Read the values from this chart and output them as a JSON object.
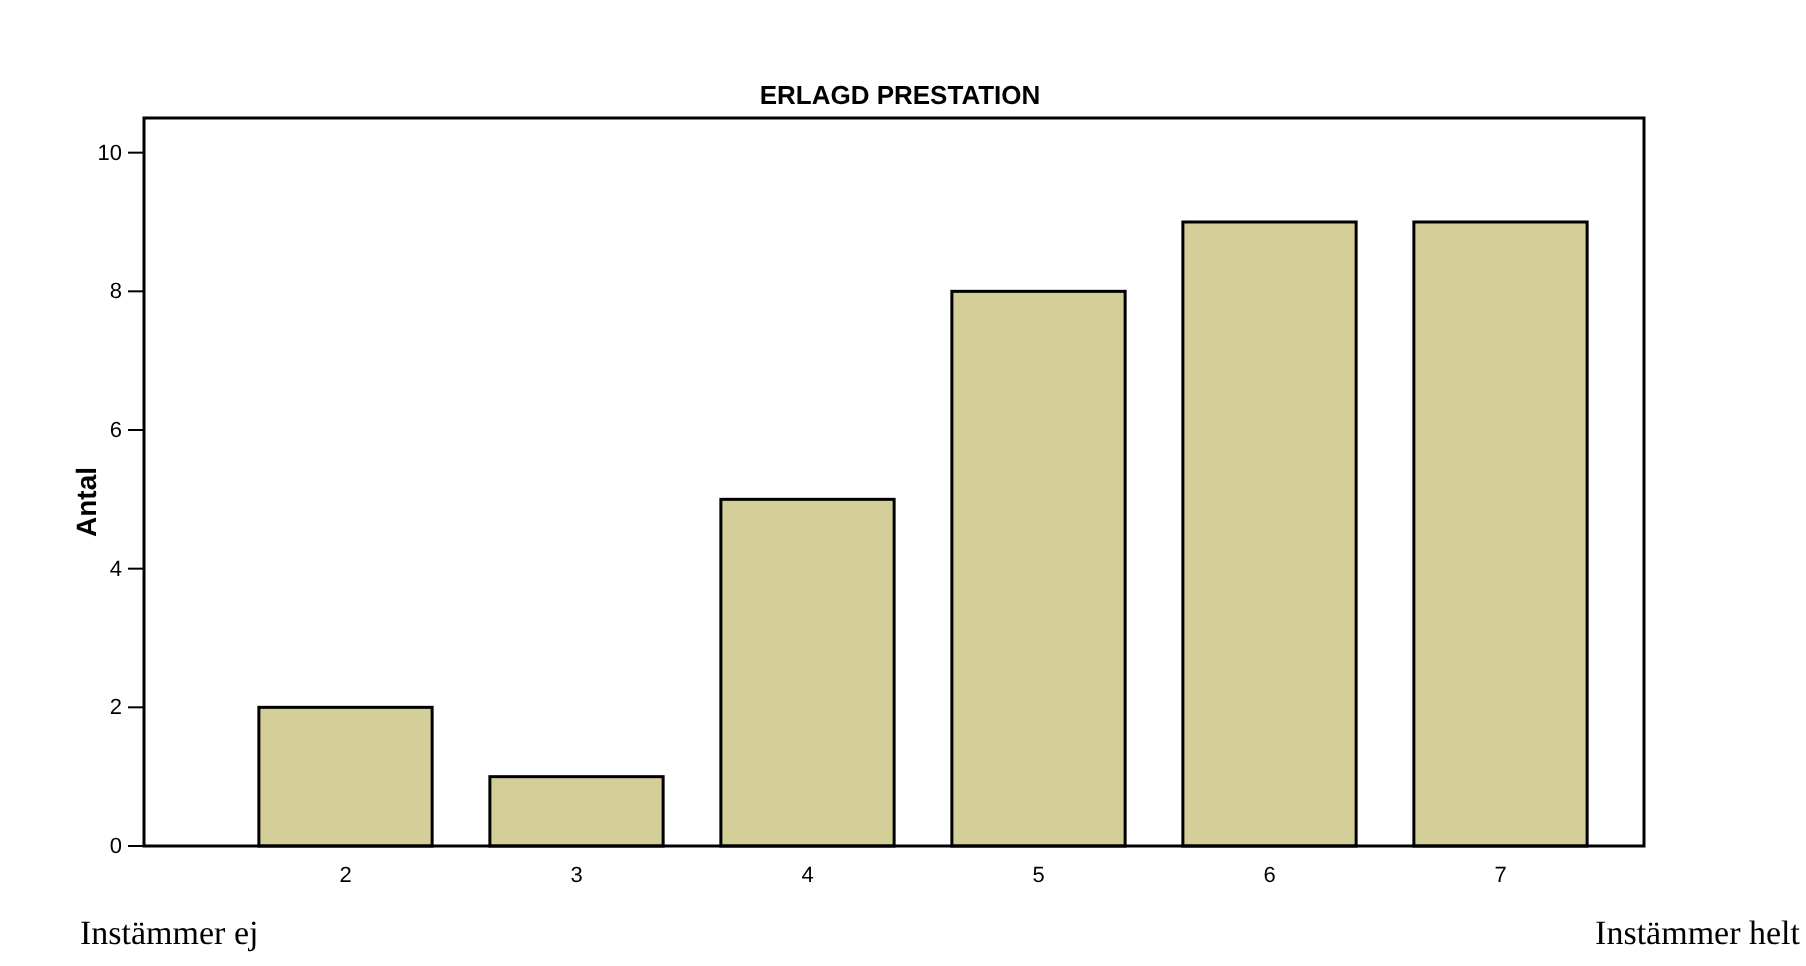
{
  "chart_data": {
    "type": "bar",
    "title": "ERLAGD PRESTATION",
    "ylabel": "Antal",
    "categories": [
      "2",
      "3",
      "4",
      "5",
      "6",
      "7"
    ],
    "values": [
      2,
      1,
      5,
      8,
      9,
      9
    ],
    "color": "#d4cf98",
    "ylim": [
      0,
      10.5
    ],
    "yticks": [
      0,
      2,
      4,
      6,
      8,
      10
    ],
    "grid": false,
    "annotations": [
      "Instämmer ej",
      "Instämmer helt"
    ]
  }
}
